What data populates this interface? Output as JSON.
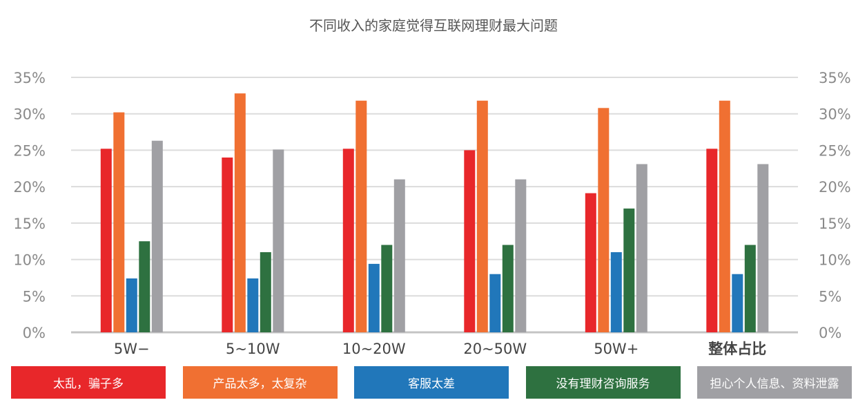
{
  "chart_data": {
    "type": "bar",
    "title": "不同收入的家庭觉得互联网理财最大问题",
    "xlabel": "",
    "ylabel": "",
    "categories": [
      "5W−",
      "5~10W",
      "10~20W",
      "20~50W",
      "50W+",
      "整体占比"
    ],
    "ylim": [
      0,
      35
    ],
    "yticks": [
      "0%",
      "5%",
      "10%",
      "15%",
      "20%",
      "25%",
      "30%",
      "35%"
    ],
    "grid": true,
    "legend_position": "bottom",
    "series": [
      {
        "name": "太乱，骗子多",
        "color": "#e8272a",
        "values": [
          25.2,
          24.0,
          25.2,
          25.0,
          19.1,
          25.2
        ]
      },
      {
        "name": "产品太多，太复杂",
        "color": "#f07032",
        "values": [
          30.2,
          32.8,
          31.8,
          31.8,
          30.8,
          31.8
        ]
      },
      {
        "name": "客服太差",
        "color": "#2177ba",
        "values": [
          7.4,
          7.4,
          9.4,
          8.0,
          11.0,
          8.0
        ]
      },
      {
        "name": "没有理财咨询服务",
        "color": "#2e7140",
        "values": [
          12.5,
          11.0,
          12.0,
          12.0,
          17.0,
          12.0
        ]
      },
      {
        "name": "担心个人信息、资料泄露",
        "color": "#a0a0a4",
        "values": [
          26.3,
          25.1,
          21.0,
          21.0,
          23.1,
          23.1
        ]
      }
    ]
  }
}
